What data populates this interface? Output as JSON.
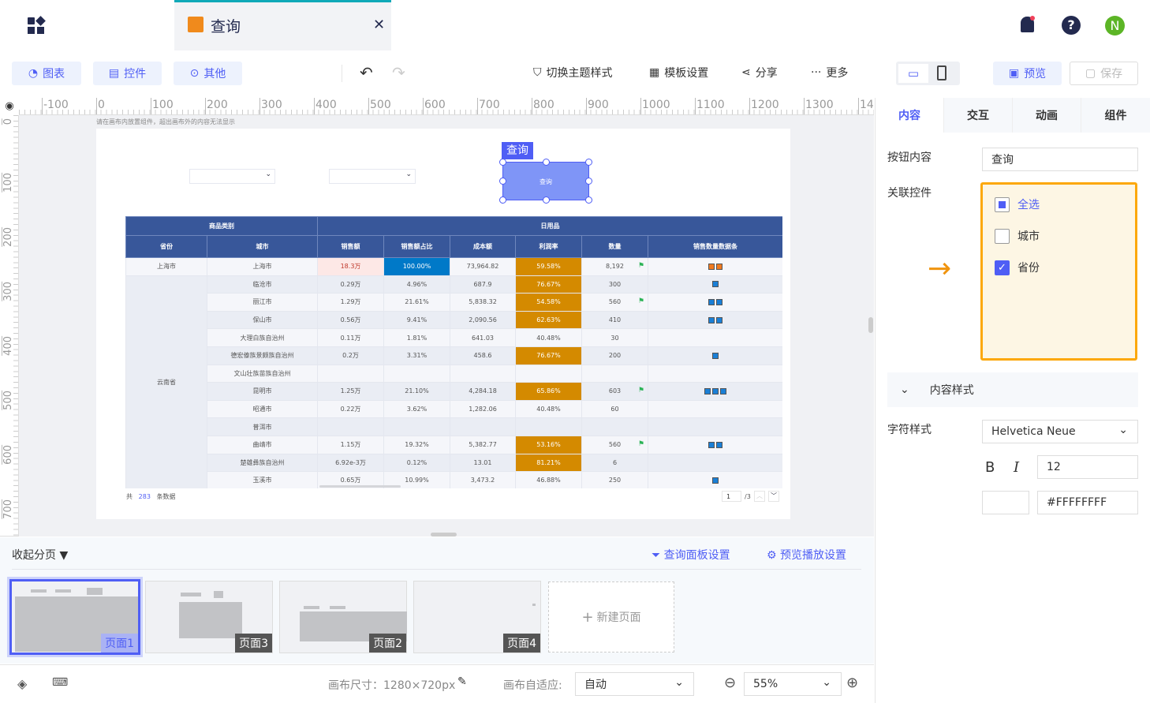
{
  "header": {
    "tab_title": "查询",
    "notifications_icon": "bell-icon",
    "help_icon": "help-icon",
    "avatar_letter": "N"
  },
  "toolbar": {
    "chart": "图表",
    "control": "控件",
    "other": "其他",
    "theme": "切换主题样式",
    "template": "模板设置",
    "share": "分享",
    "more": "更多",
    "preview": "预览",
    "save": "保存"
  },
  "ruler": {
    "top_ticks": [
      "-100",
      "0",
      "100",
      "200",
      "300",
      "400",
      "500",
      "600",
      "700",
      "800",
      "900",
      "1000",
      "1100",
      "1200",
      "1300",
      "140"
    ],
    "left_ticks": [
      "0",
      "100",
      "200",
      "300",
      "400",
      "500",
      "600",
      "700"
    ]
  },
  "canvas": {
    "hint": "请在画布内放置组件，超出画布外的内容无法显示",
    "query_tag": "查询",
    "query_button": "查询"
  },
  "table": {
    "group_headers": [
      "商品类别",
      "日用品"
    ],
    "columns": [
      "省份",
      "城市",
      "销售额",
      "销售额占比",
      "成本额",
      "利润率",
      "数量",
      "销售数量数据条"
    ],
    "rows": [
      {
        "province": "上海市",
        "city": "上海市",
        "sales": "18.3万",
        "share": "100.00%",
        "cost": "73,964.82",
        "margin": "59.58%",
        "margin_hl": true,
        "qty": "8,192",
        "flag": true,
        "bars": 2,
        "bar_color": "#f07a20"
      },
      {
        "province": "云南省",
        "city": "临沧市",
        "sales": "0.29万",
        "share": "4.96%",
        "cost": "687.9",
        "margin": "76.67%",
        "margin_hl": true,
        "qty": "300",
        "flag": false,
        "bars": 1
      },
      {
        "city": "丽江市",
        "sales": "1.29万",
        "share": "21.61%",
        "cost": "5,838.32",
        "margin": "54.58%",
        "margin_hl": true,
        "qty": "560",
        "flag": true,
        "bars": 2
      },
      {
        "city": "保山市",
        "sales": "0.56万",
        "share": "9.41%",
        "cost": "2,090.56",
        "margin": "62.63%",
        "margin_hl": true,
        "qty": "410",
        "flag": false,
        "bars": 2
      },
      {
        "city": "大理白族自治州",
        "sales": "0.11万",
        "share": "1.81%",
        "cost": "641.03",
        "margin": "40.48%",
        "margin_hl": false,
        "qty": "30",
        "flag": false,
        "bars": 0
      },
      {
        "city": "德宏傣族景颇族自治州",
        "sales": "0.2万",
        "share": "3.31%",
        "cost": "458.6",
        "margin": "76.67%",
        "margin_hl": true,
        "qty": "200",
        "flag": false,
        "bars": 1
      },
      {
        "city": "文山壮族苗族自治州",
        "sales": "",
        "share": "",
        "cost": "",
        "margin": "",
        "margin_hl": false,
        "qty": "",
        "flag": false,
        "bars": 0
      },
      {
        "city": "昆明市",
        "sales": "1.25万",
        "share": "21.10%",
        "cost": "4,284.18",
        "margin": "65.86%",
        "margin_hl": true,
        "qty": "603",
        "flag": true,
        "bars": 3
      },
      {
        "city": "昭通市",
        "sales": "0.22万",
        "share": "3.62%",
        "cost": "1,282.06",
        "margin": "40.48%",
        "margin_hl": false,
        "qty": "60",
        "flag": false,
        "bars": 0
      },
      {
        "city": "普洱市",
        "sales": "",
        "share": "",
        "cost": "",
        "margin": "",
        "margin_hl": false,
        "qty": "",
        "flag": false,
        "bars": 0
      },
      {
        "city": "曲靖市",
        "sales": "1.15万",
        "share": "19.32%",
        "cost": "5,382.77",
        "margin": "53.16%",
        "margin_hl": true,
        "qty": "560",
        "flag": true,
        "bars": 2
      },
      {
        "city": "楚雄彝族自治州",
        "sales": "6.92e-3万",
        "share": "0.12%",
        "cost": "13.01",
        "margin": "81.21%",
        "margin_hl": true,
        "qty": "6",
        "flag": false,
        "bars": 0
      },
      {
        "city": "玉溪市",
        "sales": "0.65万",
        "share": "10.99%",
        "cost": "3,473.2",
        "margin": "46.88%",
        "margin_hl": false,
        "qty": "250",
        "flag": false,
        "bars": 1
      }
    ],
    "footer": {
      "prefix": "共",
      "count": "283",
      "suffix": "条数据",
      "page": "1",
      "total_pages": "/3"
    }
  },
  "panel": {
    "tabs": [
      "内容",
      "交互",
      "动画",
      "组件"
    ],
    "button_content_label": "按钮内容",
    "button_content_value": "查询",
    "linked_label": "关联控件",
    "linked_options": [
      {
        "label": "全选",
        "state": "partial"
      },
      {
        "label": "城市",
        "state": "unchecked"
      },
      {
        "label": "省份",
        "state": "checked"
      }
    ],
    "content_style": "内容样式",
    "font_label": "字符样式",
    "font_value": "Helvetica Neue",
    "bold": "B",
    "italic": "I",
    "font_size": "12",
    "color_value": "#FFFFFFFF"
  },
  "pages": {
    "collapse": "收起分页",
    "query_panel": "查询面板设置",
    "preview_play": "预览播放设置",
    "items": [
      "页面1",
      "页面3",
      "页面2",
      "页面4"
    ],
    "new_page": "新建页面"
  },
  "footer": {
    "canvas_size": "画布尺寸：1280×720px",
    "adapt_label": "画布自适应:",
    "adapt_value": "自动",
    "zoom": "55%"
  }
}
